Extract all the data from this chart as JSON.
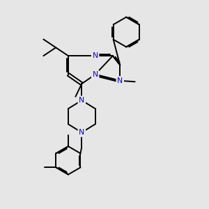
{
  "background_color": "#e6e6e6",
  "bond_color": "#000000",
  "nitrogen_color": "#0000ee",
  "bond_width": 1.4,
  "figsize": [
    3.0,
    3.0
  ],
  "dpi": 100,
  "xlim": [
    0,
    10
  ],
  "ylim": [
    0,
    10
  ]
}
